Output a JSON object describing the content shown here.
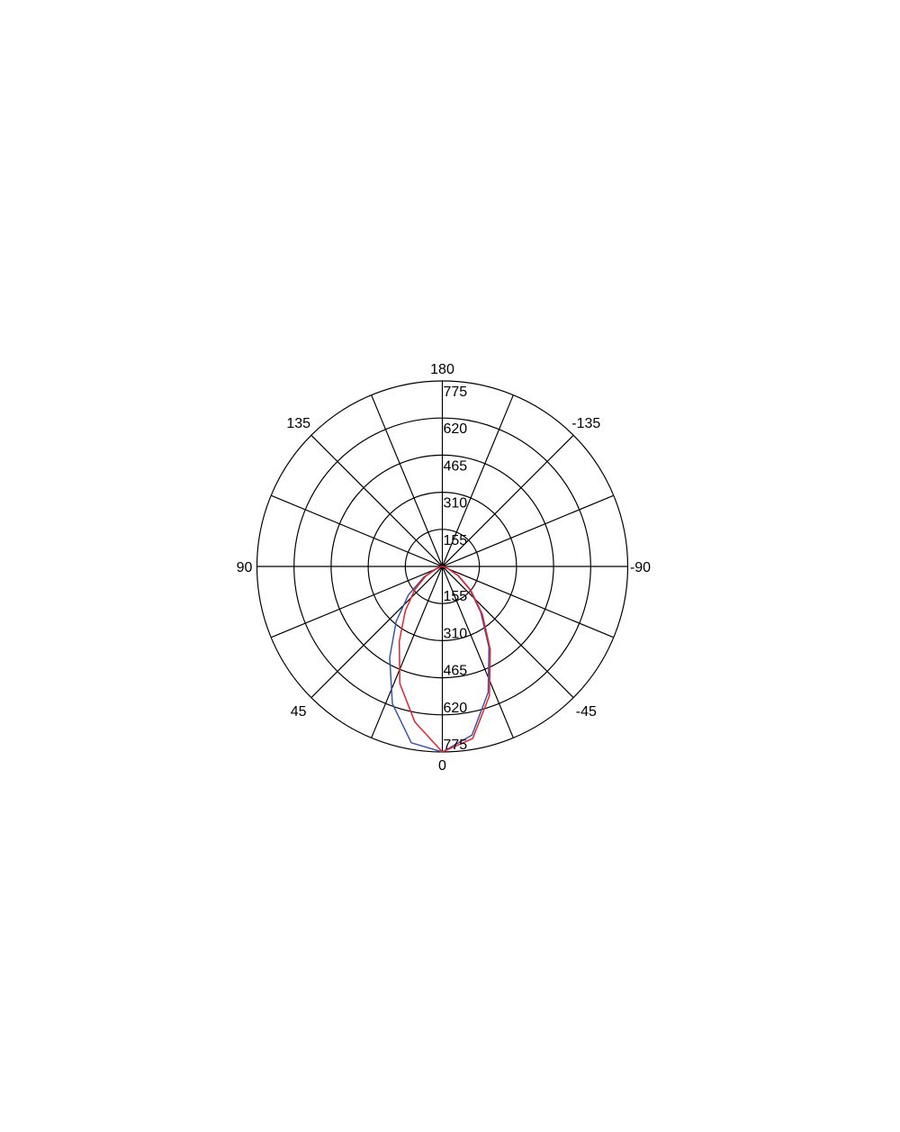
{
  "chart_data": {
    "type": "polar",
    "title": "",
    "radial_axis": {
      "range": [
        0,
        775
      ],
      "ticks": [
        155,
        310,
        465,
        620,
        775
      ],
      "tick_labels": [
        "155",
        "310",
        "465",
        "620",
        "775"
      ]
    },
    "angular_axis": {
      "spoke_step_deg": 22.5,
      "labels": [
        {
          "angle": 180,
          "text": "180"
        },
        {
          "angle": 135,
          "text": "135"
        },
        {
          "angle": -135,
          "text": "-135"
        },
        {
          "angle": 90,
          "text": "90"
        },
        {
          "angle": -90,
          "text": "-90"
        },
        {
          "angle": 45,
          "text": "45"
        },
        {
          "angle": -45,
          "text": "-45"
        },
        {
          "angle": 0,
          "text": "0"
        }
      ]
    },
    "grid": true,
    "series": [
      {
        "color": "#3a56a8",
        "angles": [
          -90,
          -80,
          -70,
          -60,
          -50,
          -40,
          -30,
          -20,
          -10,
          0,
          10,
          20,
          30,
          40,
          50,
          60,
          70,
          80,
          90
        ],
        "values": [
          0,
          5,
          25,
          75,
          150,
          250,
          390,
          560,
          715,
          775,
          748,
          610,
          440,
          300,
          185,
          90,
          30,
          8,
          0
        ]
      },
      {
        "color": "#e8222a",
        "angles": [
          -90,
          -80,
          -70,
          -60,
          -50,
          -40,
          -30,
          -20,
          -10,
          0,
          10,
          20,
          30,
          40,
          50,
          60,
          70,
          80,
          90
        ],
        "values": [
          0,
          5,
          25,
          78,
          155,
          260,
          400,
          575,
          730,
          775,
          660,
          520,
          360,
          240,
          150,
          80,
          25,
          5,
          0
        ]
      }
    ]
  }
}
